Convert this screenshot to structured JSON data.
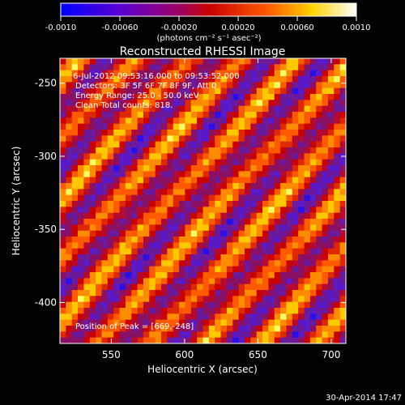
{
  "chart_data": {
    "type": "heatmap",
    "title": "Reconstructed RHESSI Image",
    "xlabel": "Heliocentric X (arcsec)",
    "ylabel": "Heliocentric Y (arcsec)",
    "xlim": [
      515,
      710
    ],
    "ylim": [
      -428,
      -233
    ],
    "x_ticks": [
      550,
      600,
      650,
      700
    ],
    "x_tick_labels": [
      "550",
      "600",
      "650",
      "700"
    ],
    "y_ticks": [
      -250,
      -300,
      -350,
      -400
    ],
    "y_tick_labels": [
      "-250",
      "-300",
      "-350",
      "-400"
    ],
    "colorbar": {
      "range": [
        -0.001,
        0.001
      ],
      "ticks": [
        -0.001,
        -0.0006,
        -0.0002,
        0.0002,
        0.0006,
        0.001
      ],
      "tick_labels": [
        "-0.0010",
        "-0.00060",
        "-0.00020",
        "0.00020",
        "0.00060",
        "0.0010"
      ],
      "units_label": "(photons cm⁻² s⁻¹ asec⁻²)",
      "colors": [
        "#0000ff",
        "#7a00c8",
        "#c80000",
        "#ff6400",
        "#ffe600",
        "#ffffff"
      ]
    },
    "annotations": {
      "time_range": "6-Jul-2012 09:53:16.000 to 09:53:52.000",
      "detectors": "Detectors: 3F 5F 6F 7F 8F 9F, Att 0",
      "energy_range": "Energy Range: 25.0 - 50.0 keV",
      "clean": "Clean   Total counts: 818.",
      "peak": "Position of Peak = [669,-248]"
    },
    "grid": false,
    "stripe_pattern": "diagonal"
  },
  "footer": {
    "timestamp": "30-Apr-2014 17:47"
  }
}
